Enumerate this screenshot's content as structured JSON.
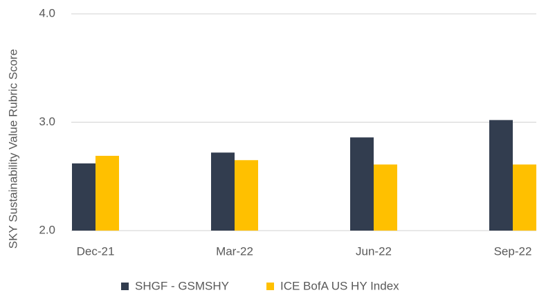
{
  "chart_data": {
    "type": "bar",
    "y_label": "SKY Sustainability Value Rubric Score",
    "categories": [
      "Dec-21",
      "Mar-22",
      "Jun-22",
      "Sep-22"
    ],
    "series": [
      {
        "name": "SHGF - GSMSHY",
        "color": "#323d4f",
        "values": [
          2.62,
          2.72,
          2.86,
          3.02
        ]
      },
      {
        "name": "ICE BofA US HY Index",
        "color": "#ffc000",
        "values": [
          2.69,
          2.65,
          2.61,
          2.61
        ]
      }
    ],
    "ylim": [
      2,
      4
    ],
    "yticks": [
      {
        "value": 2,
        "label": "2.0"
      },
      {
        "value": 3,
        "label": "3.0"
      },
      {
        "value": 4,
        "label": "4.0"
      }
    ],
    "grid": true
  }
}
